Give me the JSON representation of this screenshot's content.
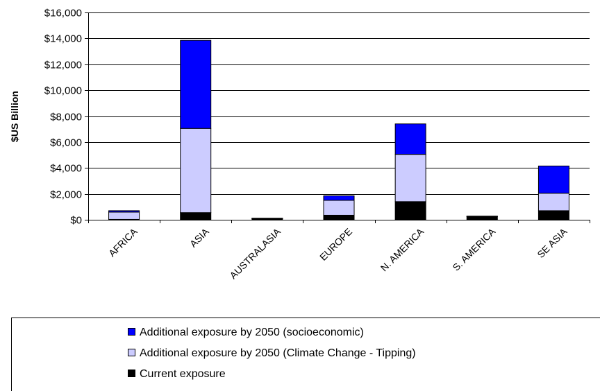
{
  "chart_data": {
    "type": "bar",
    "stacked": true,
    "title": "",
    "xlabel": "",
    "ylabel": "$US Billion",
    "ylim": [
      0,
      16000
    ],
    "yticks": [
      "$0",
      "$2,000",
      "$4,000",
      "$6,000",
      "$8,000",
      "$10,000",
      "$12,000",
      "$14,000",
      "$16,000"
    ],
    "grid": true,
    "legend_position": "bottom",
    "categories": [
      "AFRICA",
      "ASIA",
      "AUSTRALASIA",
      "EUROPE",
      "N. AMERICA",
      "S. AMERICA",
      "SE ASIA"
    ],
    "series": [
      {
        "name": "Current exposure",
        "color": "#000000",
        "values": [
          30,
          550,
          100,
          350,
          1400,
          250,
          700
        ]
      },
      {
        "name": "Additional exposure by 2050 (Climate Change - Tipping)",
        "color": "#ccccff",
        "values": [
          560,
          6500,
          10,
          1150,
          3650,
          20,
          1350
        ]
      },
      {
        "name": "Additional exposure by 2050 (socioeconomic)",
        "color": "#0000ff",
        "values": [
          110,
          6800,
          10,
          350,
          2350,
          10,
          2100
        ]
      }
    ],
    "legend_order": [
      "Additional exposure by 2050 (socioeconomic)",
      "Additional exposure by 2050 (Climate Change - Tipping)",
      "Current exposure"
    ]
  }
}
